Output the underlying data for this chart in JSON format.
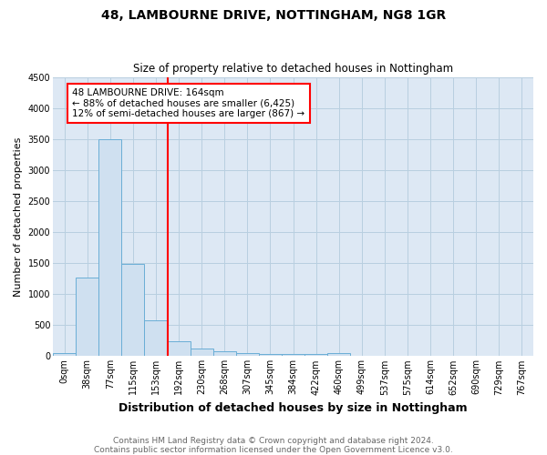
{
  "title": "48, LAMBOURNE DRIVE, NOTTINGHAM, NG8 1GR",
  "subtitle": "Size of property relative to detached houses in Nottingham",
  "xlabel": "Distribution of detached houses by size in Nottingham",
  "ylabel": "Number of detached properties",
  "footnote1": "Contains HM Land Registry data © Crown copyright and database right 2024.",
  "footnote2": "Contains public sector information licensed under the Open Government Licence v3.0.",
  "categories": [
    "0sqm",
    "38sqm",
    "77sqm",
    "115sqm",
    "153sqm",
    "192sqm",
    "230sqm",
    "268sqm",
    "307sqm",
    "345sqm",
    "384sqm",
    "422sqm",
    "460sqm",
    "499sqm",
    "537sqm",
    "575sqm",
    "614sqm",
    "652sqm",
    "690sqm",
    "729sqm",
    "767sqm"
  ],
  "values": [
    50,
    1265,
    3490,
    1480,
    575,
    245,
    130,
    85,
    45,
    30,
    40,
    35,
    55,
    0,
    0,
    0,
    0,
    0,
    0,
    0,
    0
  ],
  "bar_color": "#cfe0f0",
  "bar_edge_color": "#6aaed6",
  "ylim": [
    0,
    4500
  ],
  "yticks": [
    0,
    500,
    1000,
    1500,
    2000,
    2500,
    3000,
    3500,
    4000,
    4500
  ],
  "vline_x_index": 4.5,
  "vline_color": "red",
  "annotation_text": "48 LAMBOURNE DRIVE: 164sqm\n← 88% of detached houses are smaller (6,425)\n12% of semi-detached houses are larger (867) →",
  "annotation_box_color": "white",
  "annotation_box_edge_color": "red",
  "plot_bg_color": "#dde8f4",
  "fig_bg_color": "white",
  "grid_color": "#b8cfe0",
  "title_fontsize": 10,
  "subtitle_fontsize": 8.5,
  "annot_fontsize": 7.5,
  "ylabel_fontsize": 8,
  "xlabel_fontsize": 9,
  "tick_fontsize": 7,
  "footnote_fontsize": 6.5,
  "footnote_color": "#666666"
}
